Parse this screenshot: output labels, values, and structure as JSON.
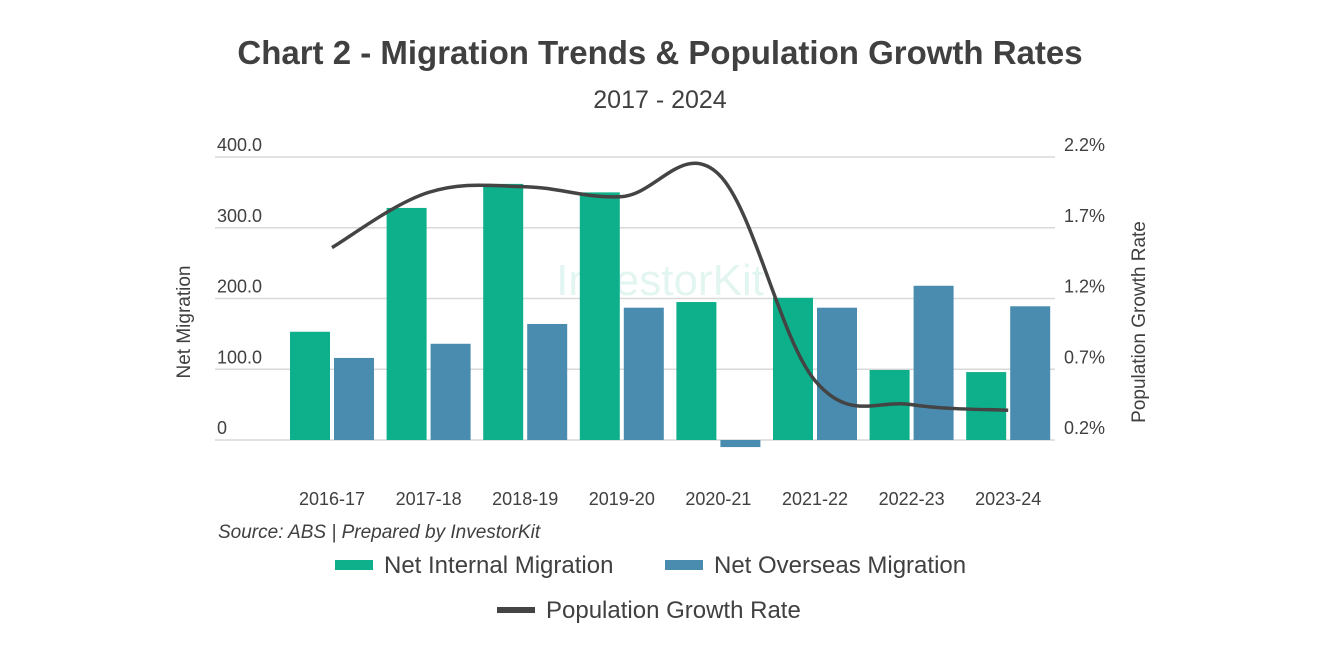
{
  "chart_data": {
    "type": "bar",
    "title": "Chart 2 - Migration Trends & Population Growth Rates",
    "subtitle": "2017 - 2024",
    "ylabel": "Net Migration",
    "ylabel_right": "Population Growth Rate",
    "source": "Source: ABS | Prepared by InvestorKit",
    "watermark": "InvestorKit",
    "categories": [
      "2016-17",
      "2017-18",
      "2018-19",
      "2019-20",
      "2020-21",
      "2021-22",
      "2022-23",
      "2023-24"
    ],
    "ylim": [
      0,
      400
    ],
    "yticks": [
      "0",
      "100.0",
      "200.0",
      "300.0",
      "400.0"
    ],
    "ylim_right": [
      0.2,
      2.2
    ],
    "yticks_right": [
      "0.2%",
      "0.7%",
      "1.2%",
      "1.7%",
      "2.2%"
    ],
    "grid": true,
    "legend_position": "bottom",
    "series": [
      {
        "name": "Net Internal Migration",
        "type": "bar",
        "color": "#0db08a",
        "values": [
          153,
          328,
          362,
          350,
          195,
          201,
          99,
          96
        ]
      },
      {
        "name": "Net Overseas Migration",
        "type": "bar",
        "color": "#4a8cb0",
        "values": [
          116,
          136,
          164,
          187,
          -10,
          187,
          218,
          189
        ]
      },
      {
        "name": "Population Growth Rate",
        "type": "line",
        "axis": "right",
        "unit": "%",
        "color": "#444444",
        "values": [
          1.56,
          1.95,
          1.99,
          1.92,
          2.08,
          0.62,
          0.45,
          0.41
        ]
      }
    ]
  }
}
